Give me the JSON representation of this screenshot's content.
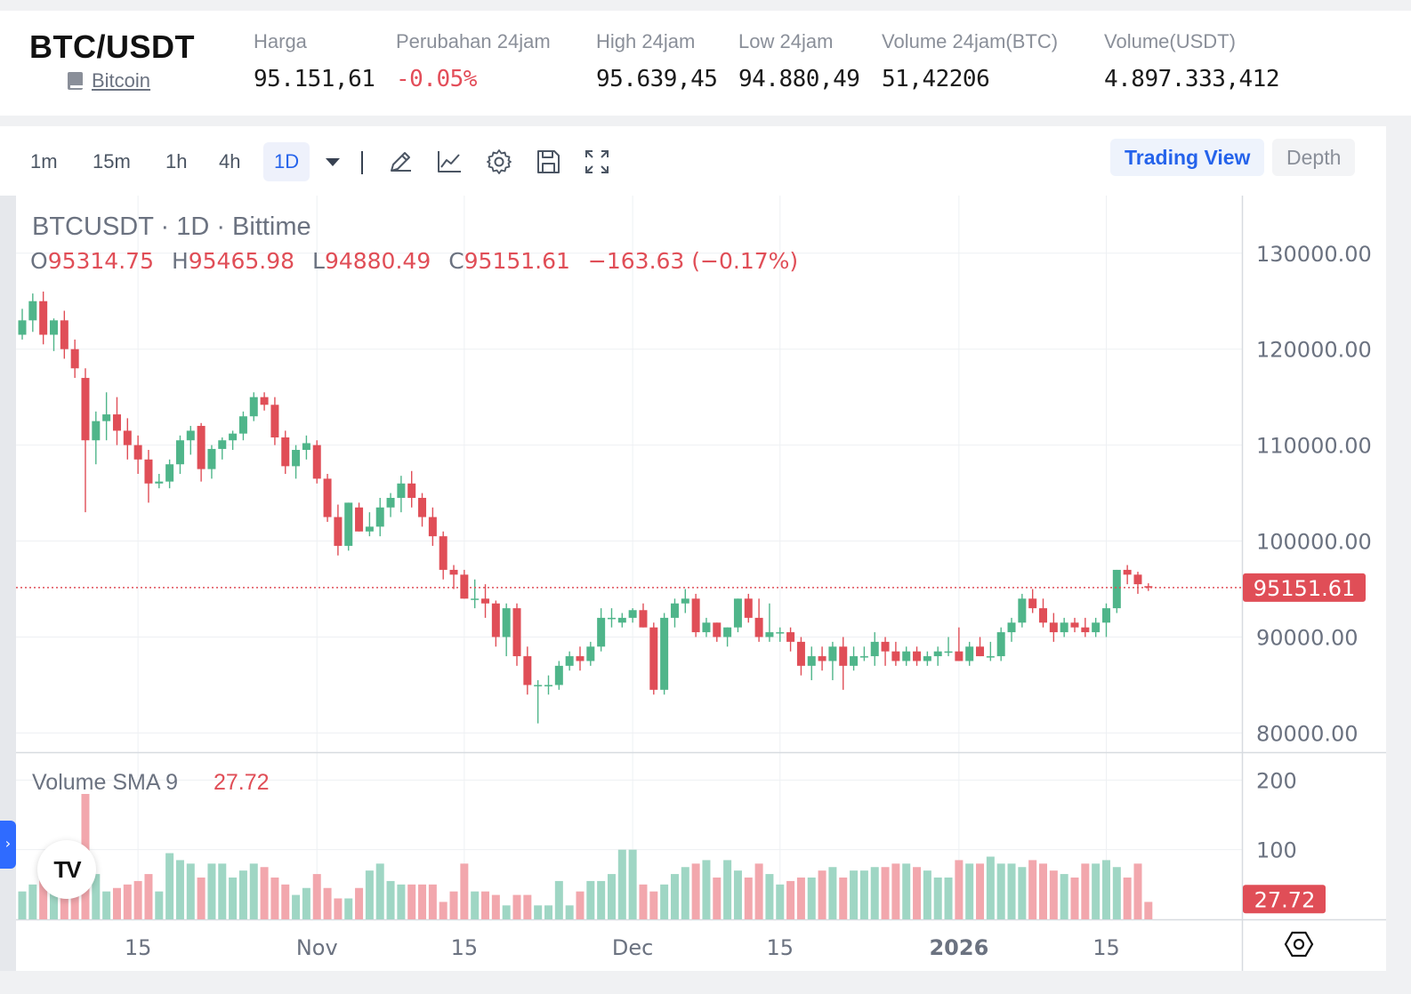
{
  "header": {
    "pair": "BTC/USDT",
    "coin_link": "Bitcoin",
    "stats": [
      {
        "label": "Harga",
        "value": "95.151,61",
        "negative": false
      },
      {
        "label": "Perubahan 24jam",
        "value": "-0.05%",
        "negative": true
      },
      {
        "label": "High 24jam",
        "value": "95.639,45",
        "negative": false
      },
      {
        "label": "Low 24jam",
        "value": "94.880,49",
        "negative": false
      },
      {
        "label": "Volume 24jam(BTC)",
        "value": "51,42206",
        "negative": false
      },
      {
        "label": "Volume(USDT)",
        "value": "4.897.333,412",
        "negative": false
      }
    ]
  },
  "toolbar": {
    "timeframes": [
      "1m",
      "15m",
      "1h",
      "4h",
      "1D"
    ],
    "active_timeframe": "1D",
    "icons": [
      "pencil-icon",
      "line-chart-icon",
      "gear-icon",
      "save-icon",
      "fullscreen-icon"
    ],
    "views": {
      "trading_view": "Trading View",
      "depth": "Depth"
    }
  },
  "legend": {
    "symbol_line": "BTCUSDT · 1D · Bittime",
    "ohlc": [
      {
        "label": "O",
        "value": "95314.75"
      },
      {
        "label": "H",
        "value": "95465.98"
      },
      {
        "label": "L",
        "value": "94880.49"
      },
      {
        "label": "C",
        "value": "95151.61"
      }
    ],
    "change": "−163.63 (−0.17%)",
    "volume_label": "Volume SMA 9",
    "volume_value": "27.72"
  },
  "colors": {
    "up": "#4fb58a",
    "down": "#e04e57",
    "up_vol": "#9fd6c4",
    "down_vol": "#f2a7ad",
    "accent": "#2563eb"
  },
  "chart_data": {
    "type": "candlestick",
    "symbol": "BTCUSDT",
    "interval": "1D",
    "ylim": [
      78000,
      136000
    ],
    "yticks": [
      "130000.00",
      "120000.00",
      "110000.00",
      "100000.00",
      "90000.00",
      "80000.00"
    ],
    "y_values": [
      130000,
      120000,
      110000,
      100000,
      90000,
      80000
    ],
    "volume_ylim": [
      0,
      240
    ],
    "volume_yticks": [
      "200",
      "100"
    ],
    "volume_y_values": [
      200,
      100
    ],
    "last_price": "95151.61",
    "last_price_value": 95151.61,
    "last_volume_label": "27.72",
    "last_volume_value": 27.72,
    "xlabels": [
      {
        "text": "15",
        "index": 11,
        "bold": false
      },
      {
        "text": "Nov",
        "index": 28,
        "bold": false
      },
      {
        "text": "15",
        "index": 42,
        "bold": false
      },
      {
        "text": "Dec",
        "index": 58,
        "bold": false
      },
      {
        "text": "15",
        "index": 72,
        "bold": false
      },
      {
        "text": "2026",
        "index": 89,
        "bold": true
      },
      {
        "text": "15",
        "index": 103,
        "bold": false
      }
    ],
    "candles": [
      [
        121500,
        124200,
        121000,
        123000,
        40
      ],
      [
        123000,
        125800,
        121800,
        125000,
        50
      ],
      [
        125000,
        126000,
        120500,
        121500,
        60
      ],
      [
        121500,
        123200,
        119800,
        123000,
        45
      ],
      [
        123000,
        124000,
        119000,
        120000,
        60
      ],
      [
        120000,
        121000,
        117000,
        118000,
        45
      ],
      [
        117000,
        118000,
        103000,
        110500,
        180
      ],
      [
        110500,
        113500,
        108000,
        112500,
        65
      ],
      [
        112500,
        115500,
        110500,
        113200,
        40
      ],
      [
        113200,
        115000,
        110000,
        111500,
        45
      ],
      [
        111500,
        112800,
        108500,
        110000,
        50
      ],
      [
        110000,
        111000,
        107000,
        108500,
        55
      ],
      [
        108500,
        109500,
        104000,
        106000,
        65
      ],
      [
        106000,
        107000,
        105500,
        106200,
        40
      ],
      [
        106200,
        108500,
        105500,
        108000,
        95
      ],
      [
        108000,
        111000,
        107000,
        110500,
        85
      ],
      [
        110500,
        112000,
        109000,
        111500,
        80
      ],
      [
        112000,
        112300,
        106200,
        107500,
        60
      ],
      [
        107500,
        110000,
        106500,
        109600,
        80
      ],
      [
        109600,
        110800,
        108500,
        110500,
        80
      ],
      [
        110500,
        111500,
        109500,
        111200,
        60
      ],
      [
        111200,
        113500,
        110500,
        113000,
        70
      ],
      [
        113000,
        115500,
        112500,
        115000,
        80
      ],
      [
        115000,
        115500,
        113600,
        114200,
        75
      ],
      [
        114200,
        115000,
        110000,
        110800,
        60
      ],
      [
        110800,
        111500,
        107000,
        107800,
        50
      ],
      [
        107800,
        110000,
        106500,
        109500,
        35
      ],
      [
        109500,
        111000,
        108500,
        110200,
        45
      ],
      [
        110000,
        110500,
        106000,
        106500,
        65
      ],
      [
        106500,
        107000,
        102000,
        102500,
        45
      ],
      [
        102500,
        103800,
        98500,
        99500,
        30
      ],
      [
        99500,
        104000,
        99000,
        104000,
        30
      ],
      [
        103500,
        104000,
        101000,
        101000,
        45
      ],
      [
        101000,
        103000,
        100500,
        101500,
        70
      ],
      [
        101500,
        104500,
        100500,
        103500,
        80
      ],
      [
        103500,
        105000,
        102500,
        104500,
        55
      ],
      [
        104500,
        106800,
        103000,
        106000,
        50
      ],
      [
        106000,
        107300,
        103500,
        104500,
        50
      ],
      [
        104500,
        105000,
        101500,
        102500,
        50
      ],
      [
        102500,
        103500,
        99500,
        100500,
        50
      ],
      [
        100500,
        101000,
        96000,
        97000,
        25
      ],
      [
        97000,
        97500,
        95000,
        96500,
        40
      ],
      [
        96500,
        97000,
        94000,
        94000,
        80
      ],
      [
        94000,
        96000,
        93000,
        94000,
        40
      ],
      [
        94000,
        95500,
        92000,
        93500,
        40
      ],
      [
        93500,
        93800,
        89000,
        90000,
        35
      ],
      [
        90000,
        93500,
        88000,
        93000,
        20
      ],
      [
        93000,
        93500,
        87000,
        88000,
        35
      ],
      [
        88000,
        89000,
        84000,
        85000,
        35
      ],
      [
        85000,
        85500,
        81000,
        85000,
        20
      ],
      [
        85000,
        86000,
        84000,
        85000,
        20
      ],
      [
        85000,
        87500,
        84500,
        87000,
        55
      ],
      [
        87000,
        88500,
        86500,
        88000,
        20
      ],
      [
        88000,
        89000,
        86500,
        87500,
        40
      ],
      [
        87500,
        89500,
        87000,
        89000,
        55
      ],
      [
        89000,
        93000,
        88500,
        92000,
        55
      ],
      [
        92000,
        93000,
        91000,
        92000,
        65
      ],
      [
        91500,
        92500,
        91000,
        92000,
        100
      ],
      [
        92000,
        93000,
        91500,
        92800,
        100
      ],
      [
        92800,
        93500,
        91000,
        91000,
        50
      ],
      [
        91000,
        91500,
        84000,
        84500,
        40
      ],
      [
        84500,
        92500,
        84000,
        92000,
        50
      ],
      [
        92000,
        94000,
        91000,
        93500,
        65
      ],
      [
        93500,
        95000,
        92500,
        94000,
        75
      ],
      [
        94000,
        94500,
        90000,
        90500,
        80
      ],
      [
        90500,
        92000,
        90000,
        91500,
        85
      ],
      [
        91500,
        91500,
        89500,
        90000,
        60
      ],
      [
        90000,
        91000,
        89000,
        91000,
        85
      ],
      [
        91000,
        94000,
        90500,
        94000,
        70
      ],
      [
        94000,
        94500,
        91500,
        92000,
        60
      ],
      [
        92000,
        94000,
        89500,
        90000,
        80
      ],
      [
        90000,
        93500,
        89500,
        90500,
        65
      ],
      [
        90500,
        91000,
        89500,
        90500,
        50
      ],
      [
        90500,
        91000,
        88500,
        89500,
        55
      ],
      [
        89500,
        90000,
        86000,
        87000,
        60
      ],
      [
        87000,
        89000,
        85500,
        88000,
        60
      ],
      [
        88000,
        89000,
        86500,
        87500,
        70
      ],
      [
        87500,
        89500,
        85500,
        89000,
        75
      ],
      [
        89000,
        90000,
        84500,
        87000,
        60
      ],
      [
        87000,
        89000,
        86500,
        88000,
        70
      ],
      [
        88000,
        89000,
        87500,
        88000,
        70
      ],
      [
        88000,
        90500,
        87000,
        89500,
        75
      ],
      [
        89500,
        90000,
        87000,
        88500,
        75
      ],
      [
        88500,
        89500,
        87000,
        87500,
        80
      ],
      [
        87500,
        89000,
        87000,
        88500,
        80
      ],
      [
        88500,
        89000,
        87000,
        87500,
        75
      ],
      [
        87500,
        88500,
        87000,
        88000,
        70
      ],
      [
        88000,
        89000,
        87000,
        88500,
        60
      ],
      [
        88500,
        90000,
        88000,
        88500,
        60
      ],
      [
        88500,
        91000,
        87500,
        87500,
        85
      ],
      [
        87500,
        89500,
        87000,
        89000,
        80
      ],
      [
        89000,
        90000,
        88000,
        88000,
        80
      ],
      [
        88000,
        89500,
        87500,
        88000,
        90
      ],
      [
        88000,
        91000,
        87500,
        90500,
        80
      ],
      [
        90500,
        92000,
        89500,
        91500,
        80
      ],
      [
        91500,
        94500,
        91000,
        94000,
        75
      ],
      [
        94000,
        95000,
        92500,
        93000,
        85
      ],
      [
        93000,
        94000,
        91000,
        91500,
        80
      ],
      [
        91500,
        92500,
        89500,
        90500,
        70
      ],
      [
        90500,
        92000,
        90000,
        91500,
        65
      ],
      [
        91500,
        92000,
        90500,
        91000,
        60
      ],
      [
        91000,
        92000,
        90000,
        90500,
        80
      ],
      [
        90500,
        92000,
        90000,
        91500,
        80
      ],
      [
        91500,
        93500,
        90000,
        93000,
        85
      ],
      [
        93000,
        97000,
        92500,
        97000,
        75
      ],
      [
        97000,
        97500,
        95500,
        96500,
        60
      ],
      [
        96500,
        96800,
        94500,
        95500,
        80
      ],
      [
        95300,
        95600,
        94800,
        95150,
        25
      ]
    ]
  }
}
